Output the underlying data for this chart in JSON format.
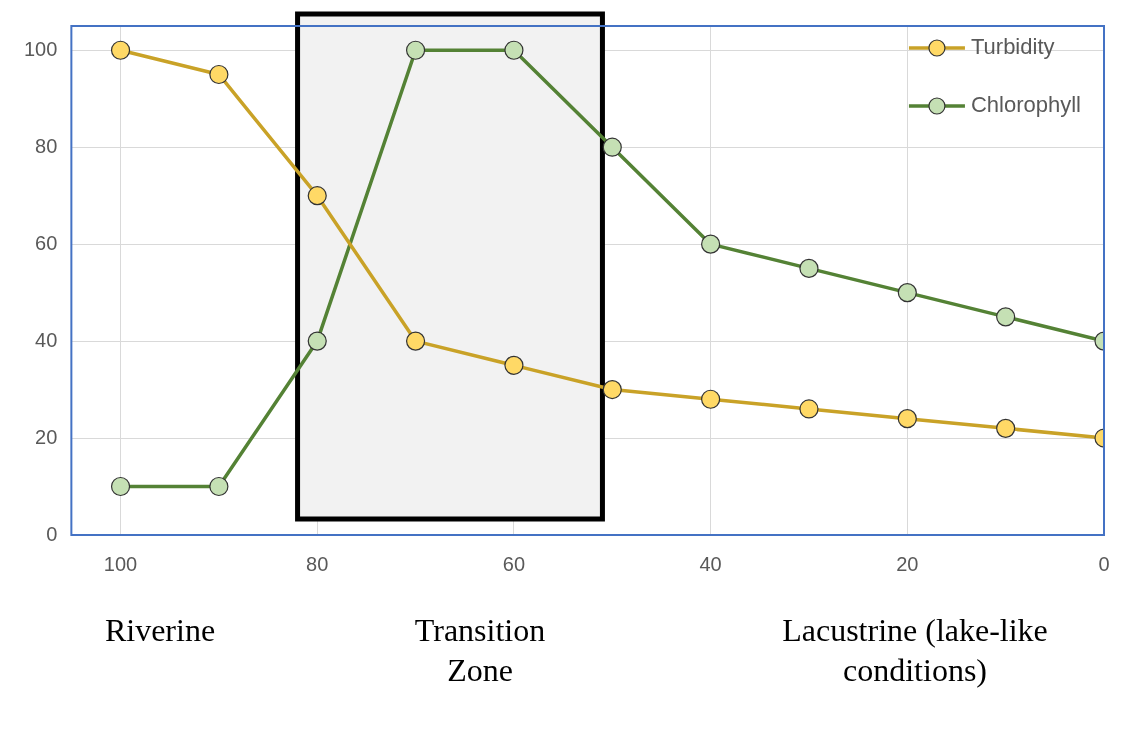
{
  "chart_data": {
    "type": "line",
    "x": [
      100,
      90,
      80,
      70,
      60,
      50,
      40,
      30,
      20,
      10,
      0
    ],
    "xlim": [
      105,
      0
    ],
    "xticks": [
      100,
      80,
      60,
      40,
      20,
      0
    ],
    "ylim": [
      0,
      105
    ],
    "yticks": [
      0,
      20,
      40,
      60,
      80,
      100
    ],
    "series": [
      {
        "name": "Turbidity",
        "color": "#c9a227",
        "values": [
          100,
          95,
          70,
          40,
          35,
          30,
          28,
          26,
          24,
          22,
          20
        ]
      },
      {
        "name": "Chlorophyll",
        "color": "#548235",
        "values": [
          10,
          10,
          40,
          100,
          100,
          80,
          60,
          55,
          50,
          45,
          40
        ]
      }
    ],
    "bands": [
      {
        "axis": "x",
        "from": 82,
        "to": 51,
        "color": "#f2f2f2"
      }
    ],
    "annotations": [
      "Riverine",
      "Transition Zone",
      "Lacustrine (lake-like conditions)"
    ],
    "grid": true,
    "legend": "top right",
    "marker": "circle",
    "line_style": "solid"
  }
}
